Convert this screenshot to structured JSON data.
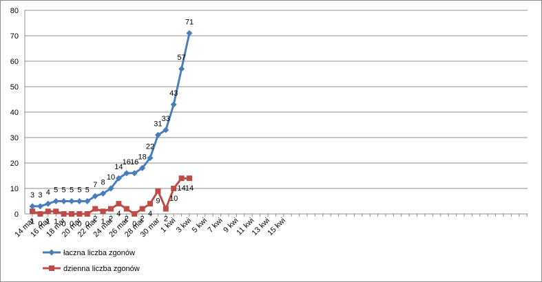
{
  "chart_data": {
    "type": "line",
    "x_ticks": [
      "14 mar",
      "16 mar",
      "18 mar",
      "20 mar",
      "22 mar",
      "24 mar",
      "26 mar",
      "28 mar",
      "30 mar",
      "1 kwi",
      "3 kwi",
      "5 kwi",
      "7 kwi",
      "9 kwi",
      "11 kwi",
      "13 kwi",
      "15 kwi"
    ],
    "ylim": [
      0,
      80
    ],
    "y_ticks": [
      0,
      10,
      20,
      30,
      40,
      50,
      60,
      70,
      80
    ],
    "grid": "horizontal",
    "legend_position": "bottom-left",
    "series": [
      {
        "name": "łaczna liczba zgonów",
        "color": "#4a7ebb",
        "marker": "diamond",
        "values": [
          3,
          3,
          4,
          5,
          5,
          5,
          5,
          5,
          7,
          8,
          10,
          14,
          16,
          16,
          18,
          22,
          31,
          33,
          43,
          57,
          71
        ],
        "labels": [
          "3",
          "3",
          "4",
          "5",
          "5",
          "5",
          "5",
          "5",
          "7",
          "8",
          "10",
          "14",
          "16",
          "16",
          "18",
          "22",
          "31",
          "33",
          "43",
          "57",
          "71"
        ]
      },
      {
        "name": "dzienna liczba zgonów",
        "color": "#be4b48",
        "marker": "square",
        "values": [
          1,
          0,
          1,
          1,
          0,
          0,
          0,
          0,
          2,
          1,
          2,
          4,
          2,
          0,
          2,
          4,
          9,
          2,
          10,
          14,
          14
        ],
        "labels": [
          "1",
          "0",
          "1",
          "1",
          "0",
          "0",
          "0",
          "0",
          "2",
          "1",
          "2",
          "4",
          "2",
          "0",
          "2",
          "4",
          "9",
          "2",
          "10",
          "14",
          "14"
        ]
      }
    ]
  }
}
